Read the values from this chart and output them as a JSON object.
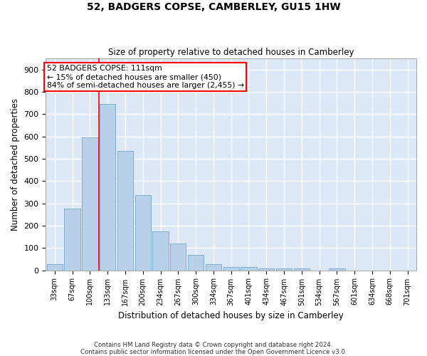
{
  "title": "52, BADGERS COPSE, CAMBERLEY, GU15 1HW",
  "subtitle": "Size of property relative to detached houses in Camberley",
  "xlabel": "Distribution of detached houses by size in Camberley",
  "ylabel": "Number of detached properties",
  "categories": [
    "33sqm",
    "67sqm",
    "100sqm",
    "133sqm",
    "167sqm",
    "200sqm",
    "234sqm",
    "267sqm",
    "300sqm",
    "334sqm",
    "367sqm",
    "401sqm",
    "434sqm",
    "467sqm",
    "501sqm",
    "534sqm",
    "567sqm",
    "601sqm",
    "634sqm",
    "668sqm",
    "701sqm"
  ],
  "values": [
    28,
    275,
    595,
    745,
    535,
    338,
    175,
    120,
    68,
    27,
    15,
    15,
    8,
    7,
    7,
    0,
    8,
    0,
    0,
    0,
    0
  ],
  "bar_color": "#b8d0ea",
  "bar_edge_color": "#7aafd4",
  "background_color": "#dce8f5",
  "grid_color": "#ffffff",
  "annotation_line1": "52 BADGERS COPSE: 111sqm",
  "annotation_line2": "← 15% of detached houses are smaller (450)",
  "annotation_line3": "84% of semi-detached houses are larger (2,455) →",
  "footer_line1": "Contains HM Land Registry data © Crown copyright and database right 2024.",
  "footer_line2": "Contains public sector information licensed under the Open Government Licence v3.0.",
  "ylim": [
    0,
    950
  ],
  "yticks": [
    0,
    100,
    200,
    300,
    400,
    500,
    600,
    700,
    800,
    900
  ],
  "property_line_index": 2.5
}
